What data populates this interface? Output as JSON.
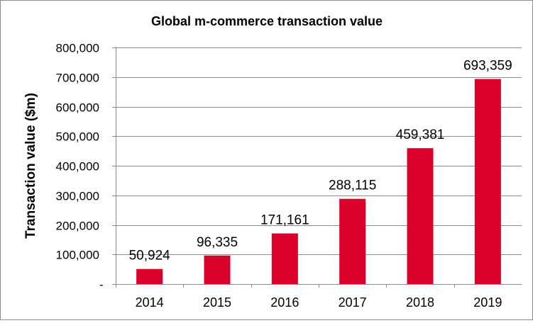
{
  "chart_data": {
    "type": "bar",
    "title": "Global m-commerce transaction value",
    "ylabel": "Transaction value ($m)",
    "xlabel": "",
    "categories": [
      "2014",
      "2015",
      "2016",
      "2017",
      "2018",
      "2019"
    ],
    "values": [
      50924,
      96335,
      171161,
      288115,
      459381,
      693359
    ],
    "data_labels": [
      "50,924",
      "96,335",
      "171,161",
      "288,115",
      "459,381",
      "693,359"
    ],
    "ylim": [
      0,
      800000
    ],
    "yticks": [
      0,
      100000,
      200000,
      300000,
      400000,
      500000,
      600000,
      700000,
      800000
    ],
    "ytick_labels": [
      "-",
      "100,000",
      "200,000",
      "300,000",
      "400,000",
      "500,000",
      "600,000",
      "700,000",
      "800,000"
    ],
    "grid": true,
    "legend": "none",
    "bar_color": "#D9002B",
    "grid_color": "#8C8C8C"
  }
}
